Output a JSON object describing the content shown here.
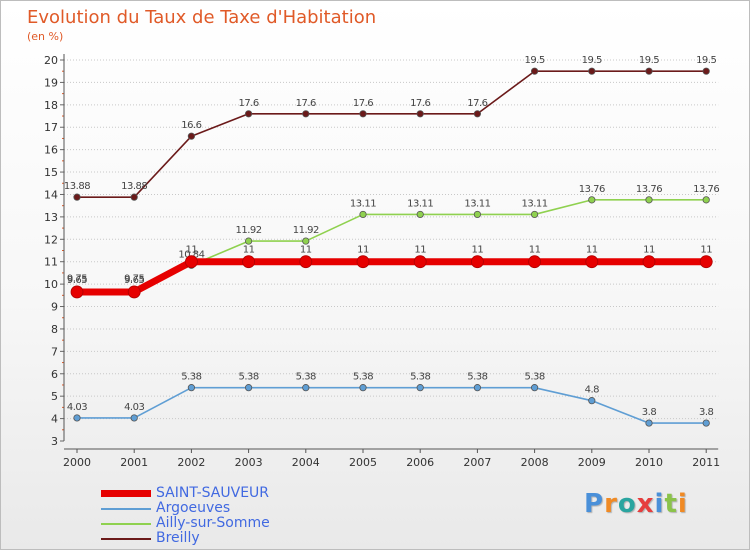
{
  "header": {
    "title": "Evolution du Taux de Taxe d'Habitation",
    "unit": "(en %)"
  },
  "logo": {
    "text": "Proxiti",
    "colors": [
      "#4a90d9",
      "#f08a24",
      "#2aa5a0",
      "#e63e3e",
      "#4a90d9",
      "#8bc34a",
      "#f08a24"
    ]
  },
  "chart_data": {
    "type": "line",
    "title": "Evolution du Taux de Taxe d'Habitation",
    "ylabel": "(en %)",
    "xlabel": "",
    "x": [
      "2000",
      "2001",
      "2002",
      "2003",
      "2004",
      "2005",
      "2006",
      "2007",
      "2008",
      "2009",
      "2010",
      "2011"
    ],
    "ylim": [
      3,
      20
    ],
    "yticks": [
      "3",
      "4",
      "5",
      "6",
      "7",
      "8",
      "9",
      "10",
      "11",
      "12",
      "13",
      "14",
      "15",
      "16",
      "17",
      "18",
      "19",
      "20"
    ],
    "grid": "horizontal dotted",
    "legend_position": "bottom-left",
    "series": [
      {
        "name": "SAINT-SAUVEUR",
        "color": "#e60000",
        "values": [
          9.65,
          9.65,
          11,
          11,
          11,
          11,
          11,
          11,
          11,
          11,
          11,
          11
        ],
        "labels": [
          "9.65",
          "9.65",
          "11",
          "11",
          "11",
          "11",
          "11",
          "11",
          "11",
          "11",
          "11",
          "11"
        ]
      },
      {
        "name": "Argoeuves",
        "color": "#5f9ed4",
        "values": [
          4.03,
          4.03,
          5.38,
          5.38,
          5.38,
          5.38,
          5.38,
          5.38,
          5.38,
          4.8,
          3.8,
          3.8
        ],
        "labels": [
          "4.03",
          "4.03",
          "5.38",
          "5.38",
          "5.38",
          "5.38",
          "5.38",
          "5.38",
          "5.38",
          "4.8",
          "3.8",
          "3.8"
        ]
      },
      {
        "name": "Ailly-sur-Somme",
        "color": "#8fd14f",
        "values": [
          9.75,
          9.75,
          10.84,
          11.92,
          11.92,
          13.11,
          13.11,
          13.11,
          13.11,
          13.76,
          13.76,
          13.76
        ],
        "labels": [
          "9.75",
          "9.75",
          "10.84",
          "11.92",
          "11.92",
          "13.11",
          "13.11",
          "13.11",
          "13.11",
          "13.76",
          "13.76",
          "13.76"
        ]
      },
      {
        "name": "Breilly",
        "color": "#6b1a1a",
        "values": [
          13.88,
          13.88,
          16.6,
          17.6,
          17.6,
          17.6,
          17.6,
          17.6,
          19.5,
          19.5,
          19.5,
          19.5
        ],
        "labels": [
          "13.88",
          "13.88",
          "16.6",
          "17.6",
          "17.6",
          "17.6",
          "17.6",
          "17.6",
          "19.5",
          "19.5",
          "19.5",
          "19.5"
        ]
      }
    ]
  }
}
